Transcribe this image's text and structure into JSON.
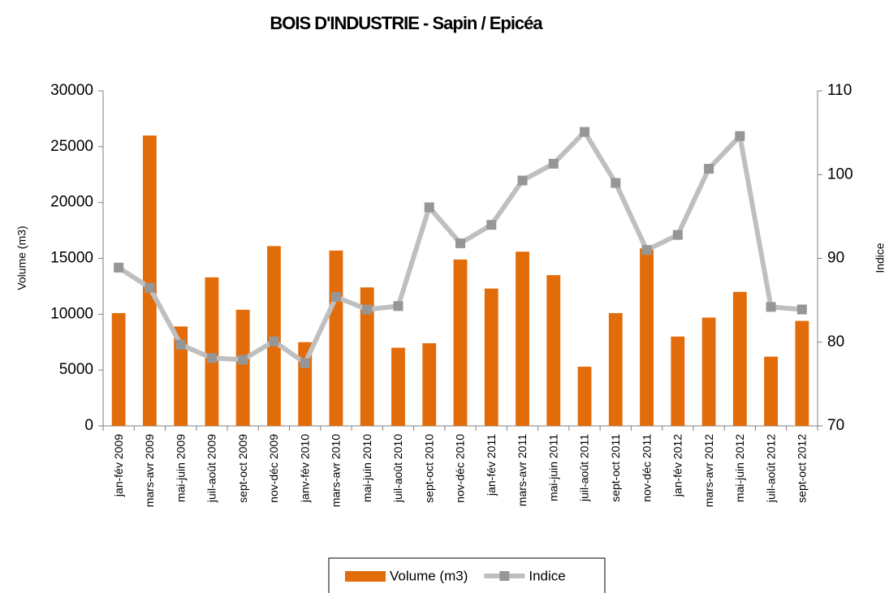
{
  "chart_data": {
    "type": "bar_line",
    "title": "BOIS D'INDUSTRIE - Sapin / Epicéa",
    "y_label": "Volume (m3)",
    "y2_label": "Indice",
    "categories": [
      "jan-fév 2009",
      "mars-avr 2009",
      "mai-juin 2009",
      "juil-août 2009",
      "sept-oct 2009",
      "nov-déc 2009",
      "janv-fév 2010",
      "mars-avr 2010",
      "mai-juin 2010",
      "juil-août 2010",
      "sept-oct 2010",
      "nov-déc 2010",
      "jan-fév 2011",
      "mars-avr 2011",
      "mai-juin 2011",
      "juil-août 2011",
      "sept-oct 2011",
      "nov-déc 2011",
      "jan-fév 2012",
      "mars-avr 2012",
      "mai-juin 2012",
      "juil-août 2012",
      "sept-oct 2012"
    ],
    "series": [
      {
        "name": "Volume (m3)",
        "type": "bar",
        "color": "#e36c0a",
        "values": [
          10100,
          26000,
          8900,
          13300,
          10400,
          16100,
          7500,
          15700,
          12400,
          7000,
          7400,
          14900,
          12300,
          15600,
          13500,
          5300,
          10100,
          15900,
          8000,
          9700,
          12000,
          6200,
          9400
        ]
      },
      {
        "name": "Indice",
        "type": "line",
        "axis": "y2",
        "color": "#bfbfbf",
        "marker_color": "#969696",
        "values": [
          88.9,
          86.5,
          79.7,
          78.1,
          77.9,
          80.1,
          77.5,
          85.4,
          83.9,
          84.3,
          96.1,
          91.8,
          94.0,
          99.3,
          101.3,
          105.1,
          99.0,
          91.0,
          92.8,
          100.7,
          104.6,
          84.2,
          83.9
        ]
      }
    ],
    "ylim": [
      0,
      30000
    ],
    "yticks": [
      0,
      5000,
      10000,
      15000,
      20000,
      25000,
      30000
    ],
    "y2lim": [
      70,
      110
    ],
    "y2ticks": [
      70,
      80,
      90,
      100,
      110
    ],
    "grid": false,
    "legend": "bottom"
  }
}
